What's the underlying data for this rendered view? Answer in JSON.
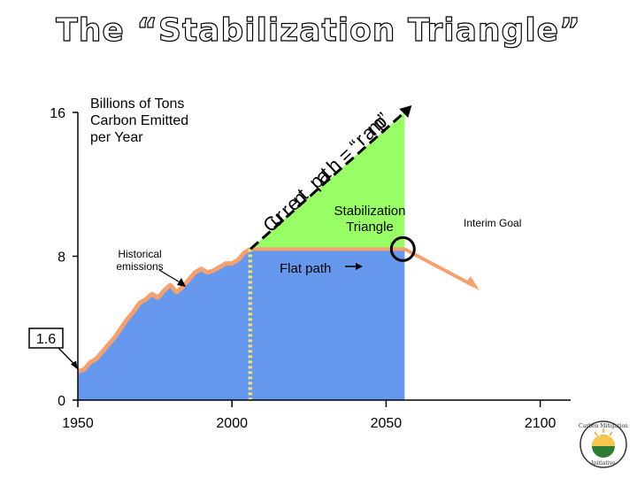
{
  "title": "The “Stabilization Triangle”",
  "chart_data": {
    "type": "area",
    "title": "The “Stabilization Triangle”",
    "ylabel": "Billions of Tons Carbon Emitted per Year",
    "xlim": [
      1950,
      2107
    ],
    "ylim": [
      0,
      16
    ],
    "x_ticks": [
      1950,
      2000,
      2050,
      2100
    ],
    "y_ticks": [
      0,
      8,
      16
    ],
    "y_callout": 1.6,
    "series": [
      {
        "name": "Historical emissions",
        "color": "#f4a070",
        "x": [
          1950,
          1952,
          1954,
          1956,
          1958,
          1960,
          1962,
          1964,
          1966,
          1968,
          1970,
          1972,
          1974,
          1976,
          1978,
          1980,
          1982,
          1984,
          1986,
          1988,
          1990,
          1992,
          1994,
          1996,
          1998,
          2000,
          2002,
          2004,
          2006
        ],
        "y": [
          1.6,
          1.7,
          2.1,
          2.3,
          2.7,
          3.1,
          3.5,
          4.0,
          4.5,
          4.9,
          5.4,
          5.6,
          5.9,
          5.7,
          6.1,
          6.4,
          6.0,
          6.3,
          6.7,
          7.1,
          7.3,
          7.1,
          7.2,
          7.4,
          7.6,
          7.6,
          7.8,
          8.2,
          8.4
        ]
      },
      {
        "name": "Current path = “ramp”",
        "color": "#000000",
        "x": [
          1950,
          1952,
          1954,
          1956,
          1958,
          1960,
          1962,
          1964,
          1966,
          1968,
          1970,
          1972,
          1974,
          1976,
          1978,
          1980,
          1982,
          1984,
          1986,
          1988,
          1990,
          1992,
          1994,
          1996,
          1998,
          2000,
          2002,
          2004,
          2006,
          2056
        ],
        "y": [
          1.6,
          1.7,
          2.1,
          2.3,
          2.7,
          3.1,
          3.5,
          4.0,
          4.5,
          4.9,
          5.4,
          5.6,
          5.9,
          5.7,
          6.1,
          6.4,
          6.0,
          6.3,
          6.7,
          7.1,
          7.3,
          7.1,
          7.2,
          7.4,
          7.6,
          7.6,
          7.8,
          8.2,
          8.4,
          16
        ]
      },
      {
        "name": "Flat path",
        "color": "#f4a070",
        "x": [
          2006,
          2056,
          2078
        ],
        "y": [
          8.4,
          8.4,
          6.4
        ]
      }
    ],
    "regions": [
      {
        "name": "Stabilization Triangle",
        "color": "#99ff66",
        "x_range": [
          2006,
          2056
        ],
        "y_bottom": 8.4,
        "y_top_end": 16
      },
      {
        "name": "Flat path area",
        "color": "#6699ee",
        "x_range": [
          1950,
          2056
        ]
      }
    ],
    "markers": [
      {
        "name": "Interim Goal",
        "x": 2056,
        "y": 8.4
      }
    ],
    "vline": {
      "x": 2006
    }
  },
  "labels": {
    "ylabel_lines": [
      "Billions of Tons",
      "Carbon Emitted",
      "per Year"
    ],
    "ramp": "Current path = “ramp”",
    "triangle_lines": [
      "Stabilization",
      "Triangle"
    ],
    "flat_path": "Flat path",
    "interim_goal": "Interim Goal",
    "historical_lines": [
      "Historical",
      "emissions"
    ],
    "callout_value": "1.6"
  },
  "logo": {
    "top_text": "Carbon Mitigation",
    "bottom_text": "Initiative"
  }
}
